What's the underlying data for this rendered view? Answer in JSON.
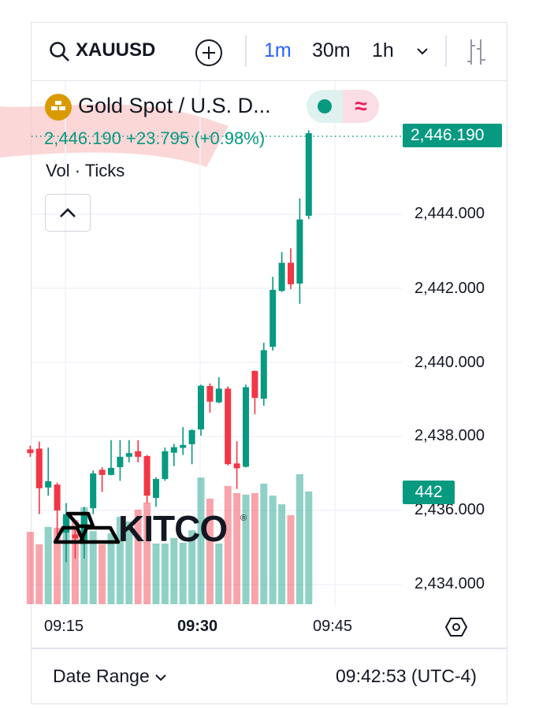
{
  "header": {
    "symbol": "XAUUSD",
    "timeframes": [
      {
        "label": "1m",
        "active": true
      },
      {
        "label": "30m",
        "active": false
      },
      {
        "label": "1h",
        "active": false
      }
    ],
    "icons": [
      "search-icon",
      "add-circle-icon",
      "chevron-down-icon",
      "candle-style-icon"
    ]
  },
  "legend": {
    "title": "Gold Spot / U.S. D...",
    "price": "2,446.190",
    "change": "+23.795",
    "change_pct": "(+0.98%)",
    "volume_label": "Vol · Ticks",
    "icons": [
      "gold-bars-icon",
      "live-dot-icon",
      "approx-icon",
      "chevron-up-icon"
    ]
  },
  "price_axis": {
    "labels": [
      "2,444.000",
      "2,442.000",
      "2,440.000",
      "2,438.000",
      "2,436.000",
      "2,434.000"
    ],
    "last_price_tag": "2,446.190",
    "volume_tag": "442"
  },
  "time_axis": {
    "labels": [
      {
        "text": "09:15",
        "bold": false
      },
      {
        "text": "09:30",
        "bold": true
      },
      {
        "text": "09:45",
        "bold": false
      }
    ]
  },
  "footer": {
    "date_range": "Date Range",
    "clock": "09:42:53 (UTC-4)"
  },
  "watermark": "KITCO",
  "colors": {
    "up": "#089981",
    "down": "#F23645",
    "accent": "#2962FF",
    "gold": "#D99A00"
  },
  "chart_data": {
    "type": "candlestick",
    "interval": "1m",
    "ylim": [
      2433.5,
      2447
    ],
    "grid": true,
    "x": [
      "09:11",
      "09:12",
      "09:13",
      "09:14",
      "09:15",
      "09:16",
      "09:17",
      "09:18",
      "09:19",
      "09:20",
      "09:21",
      "09:22",
      "09:23",
      "09:24",
      "09:25",
      "09:26",
      "09:27",
      "09:28",
      "09:29",
      "09:30",
      "09:31",
      "09:32",
      "09:33",
      "09:34",
      "09:35",
      "09:36",
      "09:37",
      "09:38",
      "09:39",
      "09:40",
      "09:41",
      "09:42"
    ],
    "ohlc": [
      [
        2437.65,
        2437.75,
        2437.45,
        2437.55
      ],
      [
        2437.67,
        2437.86,
        2435.9,
        2436.6
      ],
      [
        2436.62,
        2437.7,
        2436.4,
        2436.79
      ],
      [
        2436.7,
        2436.75,
        2435.3,
        2436.0
      ],
      [
        2435.4,
        2436.2,
        2434.6,
        2435.9
      ],
      [
        2435.35,
        2435.55,
        2434.7,
        2435.25
      ],
      [
        2435.1,
        2436.1,
        2434.7,
        2435.9
      ],
      [
        2436.06,
        2437.08,
        2435.9,
        2437.0
      ],
      [
        2437.1,
        2437.17,
        2436.5,
        2436.96
      ],
      [
        2436.96,
        2437.9,
        2436.95,
        2437.15
      ],
      [
        2437.17,
        2437.9,
        2436.8,
        2437.45
      ],
      [
        2437.45,
        2437.9,
        2437.3,
        2437.55
      ],
      [
        2437.6,
        2437.9,
        2437.3,
        2437.45
      ],
      [
        2437.47,
        2437.5,
        2436.2,
        2436.4
      ],
      [
        2436.34,
        2436.9,
        2436.1,
        2436.85
      ],
      [
        2436.85,
        2437.7,
        2436.8,
        2437.6
      ],
      [
        2437.56,
        2437.8,
        2437.2,
        2437.71
      ],
      [
        2437.69,
        2438.25,
        2437.5,
        2437.77
      ],
      [
        2437.79,
        2438.2,
        2437.25,
        2438.17
      ],
      [
        2438.19,
        2439.4,
        2438.02,
        2439.37
      ],
      [
        2439.36,
        2439.43,
        2438.64,
        2438.94
      ],
      [
        2438.92,
        2439.6,
        2438.9,
        2439.29
      ],
      [
        2439.29,
        2439.35,
        2437.22,
        2437.25
      ],
      [
        2437.27,
        2437.87,
        2436.58,
        2437.14
      ],
      [
        2437.18,
        2439.4,
        2437.16,
        2439.33
      ],
      [
        2439.77,
        2439.78,
        2438.6,
        2439.04
      ],
      [
        2439.02,
        2440.53,
        2438.83,
        2440.33
      ],
      [
        2440.42,
        2442.31,
        2440.32,
        2441.96
      ],
      [
        2441.93,
        2442.98,
        2441.9,
        2442.69
      ],
      [
        2442.69,
        2443.08,
        2441.98,
        2442.11
      ],
      [
        2442.13,
        2444.43,
        2441.58,
        2443.86
      ],
      [
        2443.96,
        2446.27,
        2443.87,
        2446.19
      ]
    ],
    "volume": [
      284,
      235,
      303,
      300,
      343,
      330,
      380,
      287,
      235,
      278,
      343,
      324,
      371,
      399,
      238,
      238,
      260,
      241,
      290,
      497,
      414,
      238,
      464,
      436,
      430,
      436,
      473,
      426,
      392,
      349,
      510,
      442
    ]
  }
}
